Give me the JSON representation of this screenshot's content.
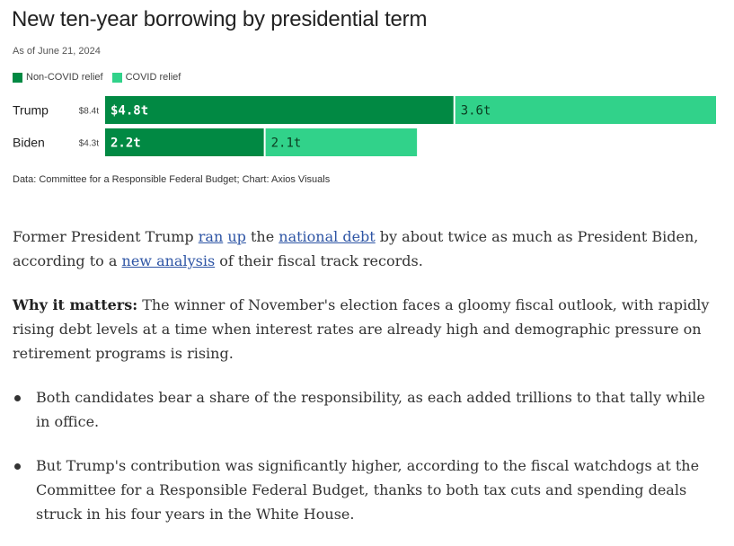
{
  "title": "New ten-year borrowing by presidential term",
  "as_of": "As of June 21, 2024",
  "legend": [
    {
      "label": "Non-COVID relief",
      "color": "#018943"
    },
    {
      "label": "COVID relief",
      "color": "#31d28a"
    }
  ],
  "source": "Data: Committee for a Responsible Federal Budget; Chart: Axios Visuals",
  "chart_data": {
    "type": "bar",
    "orientation": "horizontal",
    "stacked": true,
    "units": "trillion dollars",
    "categories": [
      "Trump",
      "Biden"
    ],
    "totals": [
      "$8.4t",
      "$4.3t"
    ],
    "series": [
      {
        "name": "Non-COVID relief",
        "color": "#018943",
        "values": [
          4.8,
          2.2
        ],
        "labels": [
          "$4.8t",
          "2.2t"
        ]
      },
      {
        "name": "COVID relief",
        "color": "#31d28a",
        "values": [
          3.6,
          2.1
        ],
        "labels": [
          "3.6t",
          "2.1t"
        ]
      }
    ],
    "xlim": [
      0,
      8.4
    ],
    "grid": false,
    "legend_position": "top-left"
  },
  "article": {
    "para1": {
      "t1": "Former President Trump ",
      "link1": "ran",
      "t2": " ",
      "link2": "up",
      "t3": " the ",
      "link3": "national debt",
      "t4": " by about twice as much as President Biden, according to a ",
      "link4": "new analysis",
      "t5": " of their fiscal track records."
    },
    "para2": {
      "lead": "Why it matters:",
      "text": " The winner of November's election faces a gloomy fiscal outlook, with rapidly rising debt levels at a time when interest rates are already high and demographic pressure on retirement programs is rising."
    },
    "bullets": [
      "Both candidates bear a share of the responsibility, as each added trillions to that tally while in office.",
      "But Trump's contribution was significantly higher, according to the fiscal watchdogs at the Committee for a Responsible Federal Budget, thanks to both tax cuts and spending deals struck in his four years in the White House."
    ]
  }
}
